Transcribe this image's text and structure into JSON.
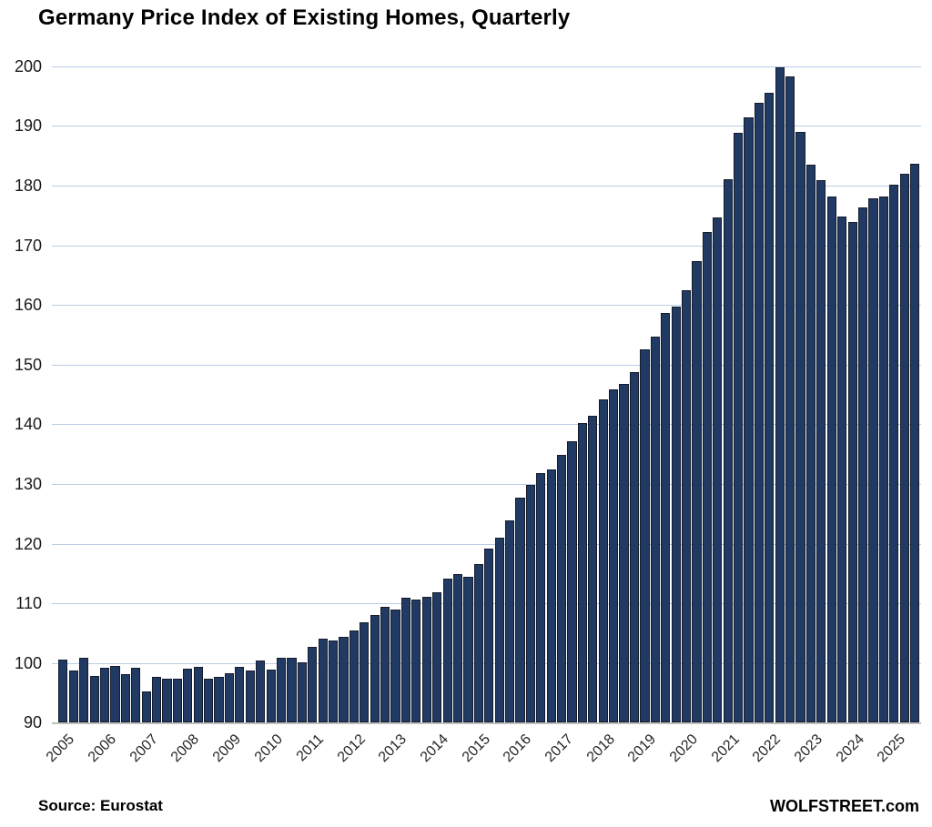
{
  "title": "Germany Price Index of Existing Homes, Quarterly",
  "footer": {
    "source_label": "Source: Eurostat",
    "brand_label": "WOLFSTREET.com"
  },
  "colors": {
    "bar_fill": "#213a63",
    "bar_border": "#151c2c",
    "gridline": "#b9cde5",
    "axis_line": "#bfbfbf",
    "text": "#000000"
  },
  "chart_data": {
    "type": "bar",
    "title": "Germany Price Index of Existing Homes, Quarterly",
    "xlabel": "",
    "ylabel": "",
    "ylim": [
      90,
      200
    ],
    "y_ticks": [
      200,
      190,
      180,
      170,
      160,
      150,
      140,
      130,
      120,
      110,
      100,
      90
    ],
    "grid": "horizontal",
    "legend_position": "none",
    "x_unit": "quarter",
    "years": [
      {
        "year": "2005",
        "values": [
          100.5,
          98.7,
          100.9,
          97.8
        ]
      },
      {
        "year": "2006",
        "values": [
          99.2,
          99.5,
          98.2,
          99.2
        ]
      },
      {
        "year": "2007",
        "values": [
          95.3,
          97.6,
          97.3,
          97.3
        ]
      },
      {
        "year": "2008",
        "values": [
          99.0,
          99.3,
          97.4,
          97.6
        ]
      },
      {
        "year": "2009",
        "values": [
          98.3,
          99.4,
          98.8,
          100.4
        ]
      },
      {
        "year": "2010",
        "values": [
          98.9,
          100.8,
          100.8,
          100.1
        ]
      },
      {
        "year": "2011",
        "values": [
          102.7,
          104.1,
          103.7,
          104.3
        ]
      },
      {
        "year": "2012",
        "values": [
          105.4,
          106.8,
          108.0,
          109.4
        ]
      },
      {
        "year": "2013",
        "values": [
          108.9,
          111.0,
          110.7,
          111.1
        ]
      },
      {
        "year": "2014",
        "values": [
          111.8,
          114.1,
          114.9,
          114.4
        ]
      },
      {
        "year": "2015",
        "values": [
          116.6,
          119.2,
          121.0,
          123.9
        ]
      },
      {
        "year": "2016",
        "values": [
          127.7,
          129.8,
          131.8,
          132.4
        ]
      },
      {
        "year": "2017",
        "values": [
          134.9,
          137.2,
          140.2,
          141.4
        ]
      },
      {
        "year": "2018",
        "values": [
          144.1,
          145.8,
          146.8,
          148.8
        ]
      },
      {
        "year": "2019",
        "values": [
          152.5,
          154.7,
          158.6,
          159.7
        ]
      },
      {
        "year": "2020",
        "values": [
          162.4,
          167.4,
          172.2,
          174.6
        ]
      },
      {
        "year": "2021",
        "values": [
          181.1,
          188.9,
          191.4,
          193.8
        ]
      },
      {
        "year": "2022",
        "values": [
          195.6,
          199.8,
          198.3,
          189.0
        ]
      },
      {
        "year": "2023",
        "values": [
          183.5,
          180.9,
          178.2,
          174.8
        ]
      },
      {
        "year": "2024",
        "values": [
          173.9,
          176.4,
          177.8,
          178.2
        ]
      },
      {
        "year": "2025",
        "values": [
          180.1,
          181.9,
          183.7
        ]
      }
    ]
  }
}
